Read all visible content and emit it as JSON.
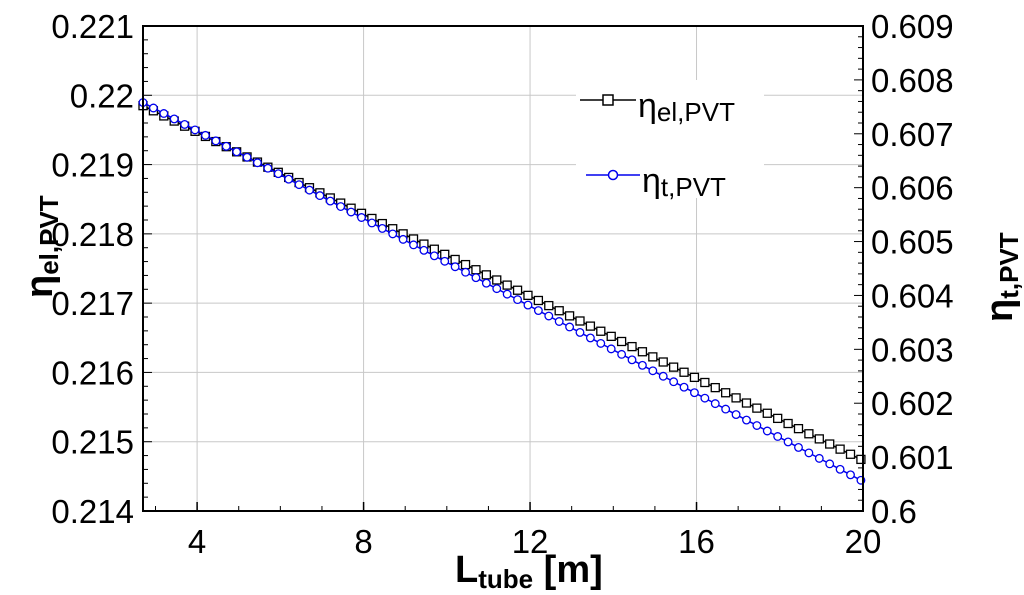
{
  "chart_data": {
    "type": "line",
    "title": "",
    "x": {
      "label_main": "L",
      "label_sub": "tube",
      "label_unit": " [m]",
      "lim": [
        2.7,
        20
      ],
      "ticks": [
        4,
        8,
        12,
        16,
        20
      ],
      "tick_labels": [
        "4",
        "8",
        "12",
        "16",
        "20"
      ]
    },
    "y_left": {
      "label_main": "η",
      "label_sub": "el,PVT",
      "lim": [
        0.214,
        0.221
      ],
      "ticks": [
        0.214,
        0.215,
        0.216,
        0.217,
        0.218,
        0.219,
        0.22,
        0.221
      ],
      "tick_labels": [
        "0.214",
        "0.215",
        "0.216",
        "0.217",
        "0.218",
        "0.219",
        "0.22",
        "0.221"
      ]
    },
    "y_right": {
      "label_main": "η",
      "label_sub": "t,PVT",
      "lim": [
        0.6,
        0.609
      ],
      "ticks": [
        0.6,
        0.601,
        0.602,
        0.603,
        0.604,
        0.605,
        0.606,
        0.607,
        0.608,
        0.609
      ],
      "tick_labels": [
        "0.6",
        "0.601",
        "0.602",
        "0.603",
        "0.604",
        "0.605",
        "0.606",
        "0.607",
        "0.608",
        "0.609"
      ]
    },
    "grid": true,
    "legend_position": "top-right",
    "series": [
      {
        "name_main": "η",
        "name_sub": "el,PVT",
        "axis": "left",
        "color": "#000000",
        "marker": "square",
        "x_start": 2.7,
        "x_end": 20,
        "x_step": 0.25,
        "y_start": 0.21985,
        "y_end": 0.21473
      },
      {
        "name_main": "η",
        "name_sub": "t,PVT",
        "axis": "right",
        "color": "#0000ee",
        "marker": "circle",
        "x_start": 2.7,
        "x_end": 20,
        "x_step": 0.25,
        "y_start": 0.60758,
        "y_end": 0.60055
      }
    ]
  }
}
